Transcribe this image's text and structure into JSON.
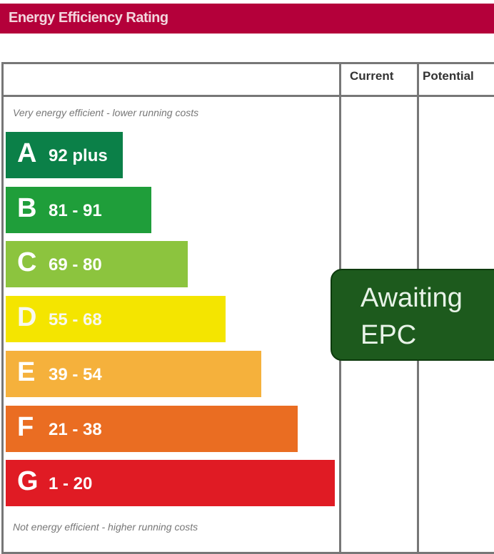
{
  "title": "Energy Efficiency Rating",
  "columns": {
    "current": "Current",
    "potential": "Potential"
  },
  "top_note": "Very energy efficient - lower running costs",
  "bottom_note": "Not energy efficient - higher running costs",
  "chart_data": {
    "type": "bar",
    "categories": [
      "A",
      "B",
      "C",
      "D",
      "E",
      "F",
      "G"
    ],
    "bands": [
      {
        "letter": "A",
        "range": "92 plus",
        "color": "#0b8048"
      },
      {
        "letter": "B",
        "range": "81 - 91",
        "color": "#1f9e3a"
      },
      {
        "letter": "C",
        "range": "69 - 80",
        "color": "#8cc43e"
      },
      {
        "letter": "D",
        "range": "55 - 68",
        "color": "#f4e500"
      },
      {
        "letter": "E",
        "range": "39 - 54",
        "color": "#f5b13c"
      },
      {
        "letter": "F",
        "range": "21 - 38",
        "color": "#ea6d22"
      },
      {
        "letter": "G",
        "range": "1 - 20",
        "color": "#e01b24"
      }
    ]
  },
  "current_rating": {
    "line1": "Awaiting",
    "line2": "EPC",
    "color": "#1d5a1d"
  }
}
